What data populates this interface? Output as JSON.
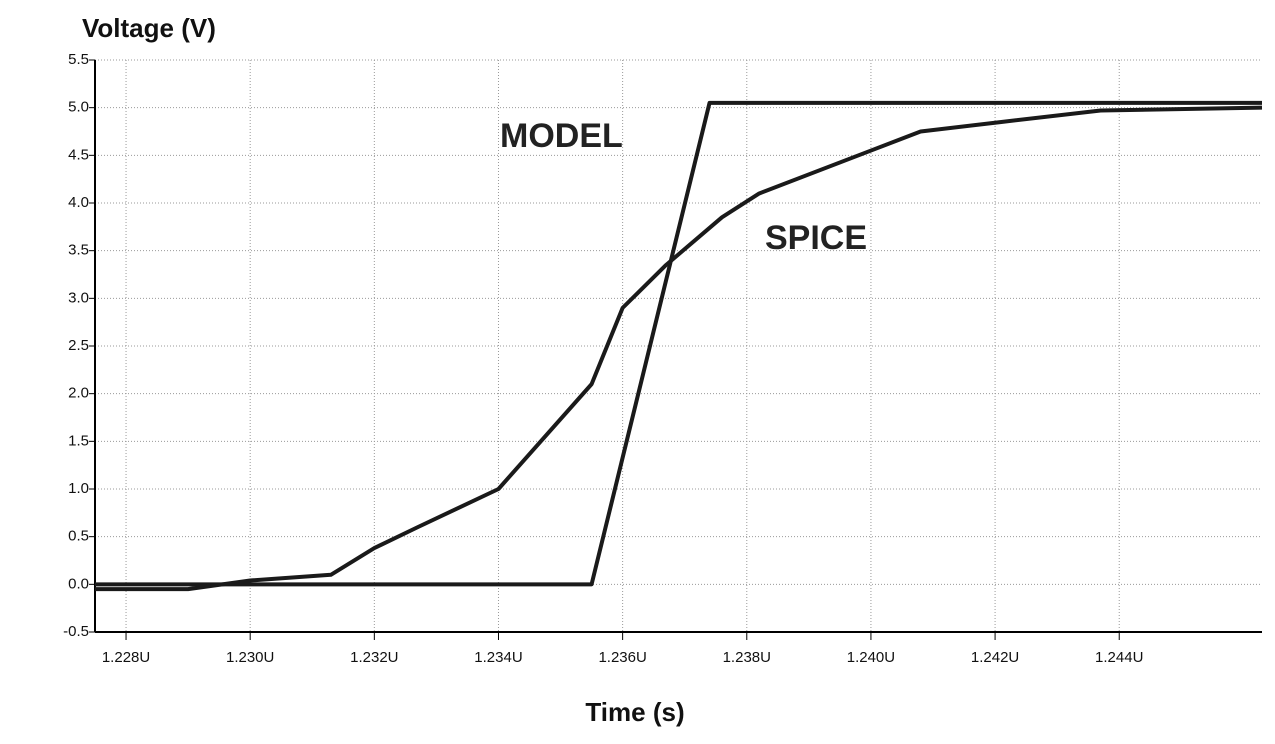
{
  "chart_data": {
    "type": "line",
    "title": "Voltage (V)",
    "x_label": "Time (s)",
    "annotations": [
      "MODEL",
      "SPICE"
    ],
    "xlim": [
      1.2275,
      1.2463
    ],
    "xticks": [
      {
        "value": 1.228,
        "label": "1.228U"
      },
      {
        "value": 1.23,
        "label": "1.230U"
      },
      {
        "value": 1.232,
        "label": "1.232U"
      },
      {
        "value": 1.234,
        "label": "1.234U"
      },
      {
        "value": 1.236,
        "label": "1.236U"
      },
      {
        "value": 1.238,
        "label": "1.238U"
      },
      {
        "value": 1.24,
        "label": "1.240U"
      },
      {
        "value": 1.242,
        "label": "1.242U"
      },
      {
        "value": 1.244,
        "label": "1.244U"
      }
    ],
    "ylim": [
      -0.5,
      5.5
    ],
    "yticks": [
      5.5,
      {
        "value": 5,
        "label": "5.0"
      },
      4.5,
      {
        "value": 4,
        "label": "4.0"
      },
      3.5,
      {
        "value": 3,
        "label": "3.0"
      },
      2.5,
      {
        "value": 2,
        "label": "2.0"
      },
      1.5,
      {
        "value": 1,
        "label": "1.0"
      },
      0.5,
      {
        "value": 0,
        "label": "0.0"
      },
      -0.5
    ],
    "grid": true,
    "series": [
      {
        "color": "#1a1a1a",
        "x": [
          1.2275,
          1.2355,
          1.2374,
          1.2463
        ],
        "values": [
          0,
          0,
          5.05,
          5.05
        ]
      },
      {
        "color": "#1a1a1a",
        "x": [
          1.2275,
          1.229,
          1.23,
          1.2313,
          1.232,
          1.2327,
          1.234,
          1.2355,
          1.236,
          1.2367,
          1.2376,
          1.2382,
          1.24,
          1.2408,
          1.2421,
          1.2437,
          1.2463
        ],
        "values": [
          -0.05,
          -0.05,
          0.04,
          0.1,
          0.38,
          0.6,
          1.0,
          2.1,
          2.9,
          3.35,
          3.85,
          4.1,
          4.55,
          4.75,
          4.85,
          4.97,
          5.0
        ]
      }
    ]
  }
}
